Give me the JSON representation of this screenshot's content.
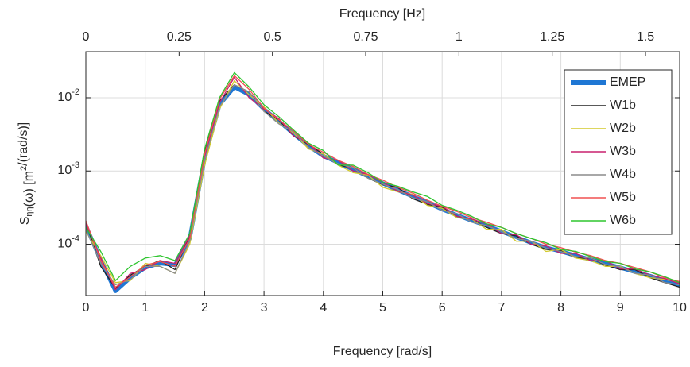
{
  "chart_data": {
    "type": "line",
    "xlabel": "Frequency [rad/s]",
    "x2label": "Frequency [Hz]",
    "ylabel": "S_ηη(ω) [m^2/(rad/s)]",
    "log_y": true,
    "grid": true,
    "legend": "upper right",
    "xlim": [
      0,
      10
    ],
    "xticks": [
      0,
      1,
      2,
      3,
      4,
      5,
      6,
      7,
      8,
      9,
      10
    ],
    "x2lim": [
      0,
      1.5915494
    ],
    "x2ticks": [
      0,
      0.25,
      0.5,
      0.75,
      1,
      1.25,
      1.5
    ],
    "ylim": [
      2e-05,
      0.0425
    ],
    "yticks": [
      {
        "value": 0.0001,
        "label": "10^-4"
      },
      {
        "value": 0.001,
        "label": "10^-3"
      },
      {
        "value": 0.01,
        "label": "10^-2"
      }
    ],
    "x": [
      0,
      0.25,
      0.5,
      0.75,
      1,
      1.25,
      1.5,
      1.75,
      2,
      2.25,
      2.5,
      2.75,
      3,
      3.25,
      3.5,
      3.75,
      4,
      4.25,
      4.5,
      4.75,
      5,
      5.25,
      5.5,
      5.75,
      6,
      6.25,
      6.5,
      6.75,
      7,
      7.25,
      7.5,
      7.75,
      8,
      8.25,
      8.5,
      8.75,
      9,
      9.25,
      9.5,
      9.75,
      10
    ],
    "series": [
      {
        "name": "EMEP",
        "color": "#1f77d4",
        "values": [
          0.00018,
          6e-05,
          2.3e-05,
          3.5e-05,
          4.8e-05,
          5.5e-05,
          5.2e-05,
          0.00012,
          0.0015,
          0.008,
          0.014,
          0.011,
          0.007,
          0.0048,
          0.0032,
          0.0022,
          0.0016,
          0.0013,
          0.00105,
          0.00085,
          0.00068,
          0.00055,
          0.00045,
          0.00037,
          0.0003,
          0.00025,
          0.00021,
          0.00018,
          0.00015,
          0.000125,
          0.000105,
          9e-05,
          8e-05,
          7e-05,
          6.2e-05,
          5.5e-05,
          4.8e-05,
          4.2e-05,
          3.7e-05,
          3.2e-05,
          2.8e-05
        ]
      },
      {
        "name": "W1b",
        "color": "#222222",
        "values": [
          0.0002,
          5e-05,
          2.5e-05,
          3.8e-05,
          5e-05,
          6e-05,
          4.5e-05,
          0.00013,
          0.0018,
          0.009,
          0.015,
          0.012,
          0.0065,
          0.005,
          0.003,
          0.0023,
          0.0017,
          0.0012,
          0.0011,
          0.0008,
          0.00065,
          0.0006,
          0.00042,
          0.00035,
          0.00032,
          0.00024,
          0.00022,
          0.00017,
          0.00014,
          0.00013,
          0.0001,
          8.5e-05,
          8.3e-05,
          6.5e-05,
          6.5e-05,
          5.2e-05,
          4.5e-05,
          4.5e-05,
          3.5e-05,
          3e-05,
          2.6e-05
        ]
      },
      {
        "name": "W2b",
        "color": "#d2c92a",
        "values": [
          0.00015,
          7e-05,
          3e-05,
          3.2e-05,
          5.5e-05,
          5e-05,
          4e-05,
          0.0001,
          0.0012,
          0.007,
          0.017,
          0.011,
          0.0075,
          0.0045,
          0.0033,
          0.002,
          0.0017,
          0.0012,
          0.00095,
          0.00088,
          0.0006,
          0.00052,
          0.00048,
          0.00034,
          0.00031,
          0.00023,
          0.00022,
          0.00016,
          0.00016,
          0.00011,
          0.00011,
          8e-05,
          8.5e-05,
          6.5e-05,
          6e-05,
          5e-05,
          5e-05,
          4e-05,
          3.5e-05,
          3.3e-05,
          3e-05
        ]
      },
      {
        "name": "W3b",
        "color": "#c8206e",
        "values": [
          0.00019,
          6.5e-05,
          2.4e-05,
          4e-05,
          4.5e-05,
          6e-05,
          5.5e-05,
          0.00013,
          0.0016,
          0.0085,
          0.019,
          0.01,
          0.007,
          0.0052,
          0.003,
          0.0024,
          0.0015,
          0.0014,
          0.001,
          0.0009,
          0.0007,
          0.00053,
          0.00047,
          0.00036,
          0.00033,
          0.00024,
          0.00022,
          0.00019,
          0.00014,
          0.000135,
          0.0001,
          9.5e-05,
          7.5e-05,
          7.5e-05,
          6e-05,
          6e-05,
          4.6e-05,
          4.6e-05,
          3.8e-05,
          3.4e-05,
          2.9e-05
        ]
      },
      {
        "name": "W4b",
        "color": "#8c8c8c",
        "values": [
          0.00016,
          5.5e-05,
          2.8e-05,
          3.3e-05,
          5e-05,
          5e-05,
          4e-05,
          0.00011,
          0.0014,
          0.0075,
          0.015,
          0.012,
          0.0065,
          0.0044,
          0.0034,
          0.0021,
          0.0016,
          0.00125,
          0.0011,
          0.0008,
          0.00066,
          0.00056,
          0.00043,
          0.00038,
          0.00029,
          0.00026,
          0.0002,
          0.00018,
          0.00015,
          0.00012,
          0.00011,
          8.8e-05,
          8e-05,
          6.8e-05,
          6.5e-05,
          5.3e-05,
          4.9e-05,
          4e-05,
          3.8e-05,
          3e-05,
          2.8e-05
        ]
      },
      {
        "name": "W5b",
        "color": "#f05050",
        "values": [
          0.00021,
          6e-05,
          2.6e-05,
          3.6e-05,
          5.2e-05,
          5.8e-05,
          5e-05,
          0.00012,
          0.0017,
          0.0095,
          0.02,
          0.013,
          0.0072,
          0.005,
          0.0035,
          0.0023,
          0.0018,
          0.0014,
          0.00115,
          0.0009,
          0.00075,
          0.0006,
          0.0005,
          0.0004,
          0.00033,
          0.00028,
          0.00023,
          0.0002,
          0.00017,
          0.00014,
          0.00012,
          0.0001,
          9e-05,
          7.8e-05,
          7e-05,
          6e-05,
          5.5e-05,
          4.8e-05,
          4.2e-05,
          3.5e-05,
          3.1e-05
        ]
      },
      {
        "name": "W6b",
        "color": "#2fc52f",
        "values": [
          0.00017,
          8e-05,
          3.2e-05,
          5e-05,
          6.5e-05,
          7e-05,
          6e-05,
          0.00014,
          0.002,
          0.01,
          0.022,
          0.014,
          0.008,
          0.0055,
          0.0036,
          0.0024,
          0.0019,
          0.0012,
          0.0012,
          0.00095,
          0.0007,
          0.00062,
          0.00052,
          0.00045,
          0.00034,
          0.00029,
          0.00024,
          0.00019,
          0.00017,
          0.00014,
          0.00012,
          0.000105,
          8.5e-05,
          8e-05,
          6.8e-05,
          5.8e-05,
          5.5e-05,
          4.6e-05,
          4.2e-05,
          3.6e-05,
          3e-05
        ]
      }
    ]
  }
}
